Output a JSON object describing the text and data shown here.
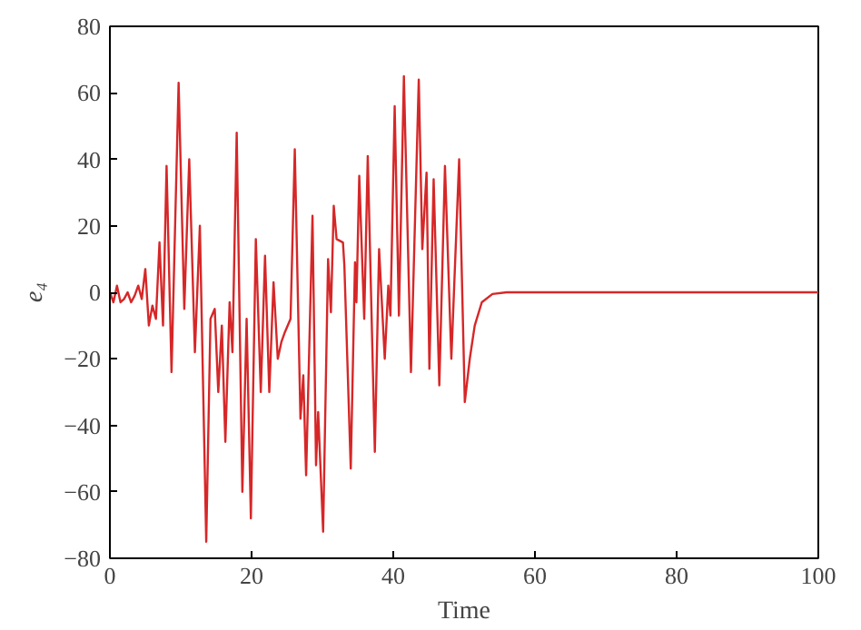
{
  "chart_data": {
    "type": "line",
    "xlabel": "Time",
    "ylabel": "e₄",
    "xlim": [
      0,
      100
    ],
    "ylim": [
      -80,
      80
    ],
    "xticks": [
      0,
      20,
      40,
      60,
      80,
      100
    ],
    "yticks": [
      -80,
      -60,
      -40,
      -20,
      0,
      20,
      40,
      60,
      80
    ],
    "grid": false,
    "marker": "none",
    "line_style": "solid",
    "series": [
      {
        "color": "#d62728",
        "x": [
          0,
          0.5,
          1,
          1.5,
          2,
          2.5,
          3,
          3.5,
          4,
          4.5,
          5,
          5.5,
          6,
          6.5,
          7,
          7.5,
          8,
          8.7,
          9.7,
          10.5,
          11.2,
          12,
          12.7,
          13.6,
          14.2,
          14.8,
          15.3,
          15.8,
          16.3,
          16.9,
          17.3,
          17.9,
          18.7,
          19.3,
          19.9,
          20.6,
          21.3,
          21.9,
          22.5,
          23.1,
          23.7,
          24.2,
          24.7,
          25.5,
          26.1,
          26.9,
          27.3,
          27.7,
          28.6,
          29.1,
          29.4,
          30.1,
          30.8,
          31.2,
          31.6,
          32,
          32.9,
          33.1,
          34,
          34.6,
          34.8,
          35.2,
          35.9,
          36.4,
          37.4,
          38,
          38.8,
          39.3,
          39.6,
          40.2,
          40.8,
          41.5,
          42.5,
          43.6,
          44.1,
          44.7,
          45.1,
          45.7,
          46.5,
          47.3,
          48.2,
          49.3,
          50.1,
          50.8,
          51.5,
          52.5,
          54,
          56,
          100
        ],
        "values": [
          0,
          -3,
          2,
          -3,
          -2,
          0,
          -3,
          -1,
          2,
          -2,
          7,
          -10,
          -4,
          -8,
          15,
          -10,
          38,
          -24,
          63,
          -5,
          40,
          -18,
          20,
          -75,
          -8,
          -5,
          -30,
          -10,
          -45,
          -3,
          -18,
          48,
          -60,
          -8,
          -68,
          16,
          -30,
          11,
          -30,
          3,
          -20,
          -15,
          -12,
          -8,
          43,
          -38,
          -25,
          -55,
          23,
          -52,
          -36,
          -72,
          10,
          -6,
          26,
          16,
          15,
          8,
          -53,
          9,
          -3,
          35,
          -8,
          41,
          -48,
          13,
          -20,
          2,
          -7,
          56,
          -7,
          65,
          -24,
          64,
          13,
          36,
          -23,
          34,
          -28,
          38,
          -20,
          40,
          -33,
          -20,
          -10,
          -3,
          -0.5,
          0,
          0
        ]
      }
    ]
  }
}
